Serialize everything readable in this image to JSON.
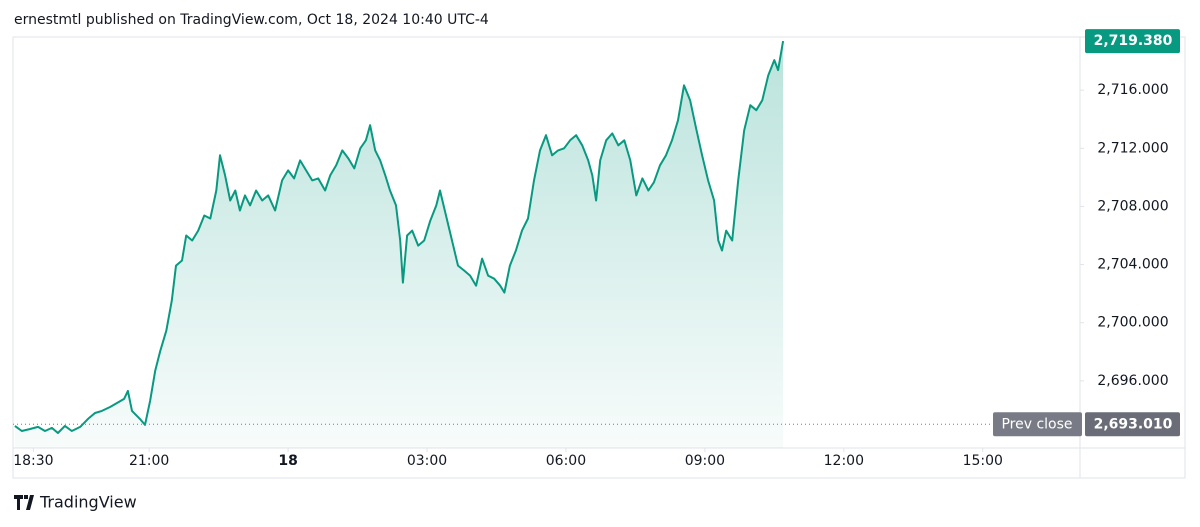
{
  "header": "ernestmtl published on TradingView.com, Oct 18, 2024 10:40 UTC-4",
  "footer": "TradingView",
  "chart_data": {
    "type": "area",
    "color": "#089981",
    "x": [
      -5.9,
      -5.75,
      -5.57,
      -5.4,
      -5.25,
      -5.1,
      -4.97,
      -4.82,
      -4.67,
      -4.49,
      -4.32,
      -4.17,
      -4.02,
      -3.84,
      -3.69,
      -3.54,
      -3.46,
      -3.37,
      -3.2,
      -3.09,
      -2.98,
      -2.87,
      -2.76,
      -2.63,
      -2.51,
      -2.42,
      -2.29,
      -2.2,
      -2.07,
      -1.94,
      -1.81,
      -1.68,
      -1.55,
      -1.47,
      -1.36,
      -1.25,
      -1.14,
      -1.04,
      -0.93,
      -0.82,
      -0.69,
      -0.56,
      -0.43,
      -0.28,
      -0.13,
      0,
      0.13,
      0.26,
      0.39,
      0.52,
      0.65,
      0.8,
      0.91,
      1.04,
      1.17,
      1.3,
      1.43,
      1.56,
      1.68,
      1.77,
      1.88,
      1.99,
      2.1,
      2.2,
      2.33,
      2.42,
      2.48,
      2.57,
      2.68,
      2.81,
      2.94,
      3.07,
      3.2,
      3.28,
      3.41,
      3.54,
      3.67,
      3.8,
      3.93,
      4.06,
      4.19,
      4.32,
      4.45,
      4.58,
      4.67,
      4.79,
      4.92,
      5.05,
      5.18,
      5.31,
      5.44,
      5.57,
      5.7,
      5.83,
      5.96,
      6.09,
      6.22,
      6.35,
      6.48,
      6.57,
      6.65,
      6.74,
      6.87,
      7.0,
      7.13,
      7.26,
      7.39,
      7.52,
      7.65,
      7.78,
      7.9,
      8.03,
      8.16,
      8.29,
      8.42,
      8.55,
      8.68,
      8.81,
      8.94,
      9.07,
      9.2,
      9.29,
      9.37,
      9.46,
      9.59,
      9.72,
      9.85,
      9.98,
      10.11,
      10.24,
      10.37,
      10.5,
      10.58,
      10.69
    ],
    "values": [
      2692.9,
      2692.55,
      2692.69,
      2692.83,
      2692.55,
      2692.76,
      2692.41,
      2692.9,
      2692.55,
      2692.83,
      2693.38,
      2693.79,
      2693.93,
      2694.21,
      2694.48,
      2694.76,
      2695.31,
      2693.93,
      2693.38,
      2692.97,
      2694.62,
      2696.69,
      2698.07,
      2699.45,
      2701.52,
      2703.93,
      2704.28,
      2706.0,
      2705.66,
      2706.34,
      2707.38,
      2707.17,
      2709.1,
      2711.52,
      2710.14,
      2708.41,
      2709.1,
      2707.72,
      2708.76,
      2708.07,
      2709.1,
      2708.41,
      2708.76,
      2707.72,
      2709.79,
      2710.48,
      2709.93,
      2711.17,
      2710.48,
      2709.79,
      2709.93,
      2709.1,
      2710.14,
      2710.83,
      2711.86,
      2711.31,
      2710.62,
      2712.0,
      2712.55,
      2713.59,
      2711.86,
      2711.17,
      2710.14,
      2709.1,
      2708.07,
      2705.66,
      2702.76,
      2706.0,
      2706.34,
      2705.31,
      2705.66,
      2707.03,
      2708.07,
      2709.1,
      2707.38,
      2705.66,
      2703.93,
      2703.59,
      2703.24,
      2702.55,
      2704.41,
      2703.24,
      2703.03,
      2702.55,
      2702.07,
      2703.93,
      2704.97,
      2706.34,
      2707.17,
      2709.79,
      2711.86,
      2712.9,
      2711.52,
      2711.86,
      2712.0,
      2712.55,
      2712.9,
      2712.21,
      2711.17,
      2710.14,
      2708.41,
      2711.17,
      2712.55,
      2713.03,
      2712.21,
      2712.55,
      2711.17,
      2708.76,
      2709.93,
      2709.1,
      2709.66,
      2710.83,
      2711.52,
      2712.55,
      2713.93,
      2716.34,
      2715.31,
      2713.38,
      2711.52,
      2709.79,
      2708.41,
      2705.66,
      2704.97,
      2706.34,
      2705.66,
      2709.79,
      2713.24,
      2714.97,
      2714.62,
      2715.31,
      2717.03,
      2718.07,
      2717.38,
      2719.38
    ],
    "xlim": [
      -5.94,
      17.1
    ],
    "ylim": [
      2691.38,
      2719.66
    ],
    "xticks": [
      {
        "value": -5.5,
        "label": "18:30"
      },
      {
        "value": -3,
        "label": "21:00"
      },
      {
        "value": 0,
        "label": "18"
      },
      {
        "value": 3,
        "label": "03:00"
      },
      {
        "value": 6,
        "label": "06:00"
      },
      {
        "value": 9,
        "label": "09:00"
      },
      {
        "value": 12,
        "label": "12:00"
      },
      {
        "value": 15,
        "label": "15:00"
      }
    ],
    "yticks": [
      {
        "value": 2696,
        "label": "2,696.000"
      },
      {
        "value": 2700,
        "label": "2,700.000"
      },
      {
        "value": 2704,
        "label": "2,704.000"
      },
      {
        "value": 2708,
        "label": "2,708.000"
      },
      {
        "value": 2712,
        "label": "2,712.000"
      },
      {
        "value": 2716,
        "label": "2,716.000"
      }
    ],
    "last_price": {
      "value": 2719.38,
      "label": "2,719.380"
    },
    "prev_close": {
      "name": "Prev close",
      "value": 2693.01,
      "label": "2,693.010"
    }
  }
}
